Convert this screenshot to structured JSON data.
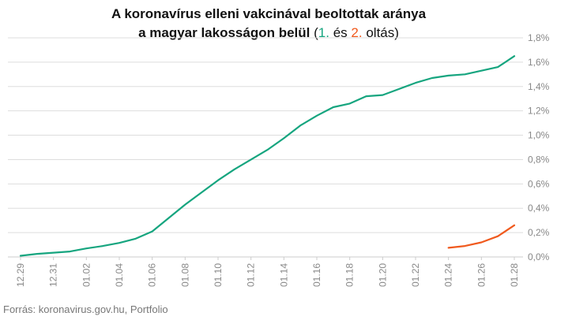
{
  "title": {
    "line1": "A koronavírus elleni vakcinával beoltottak aránya",
    "line2": "a magyar lakosságon belül",
    "paren_open": "(",
    "series1": "1.",
    "and": "és",
    "series2": "2.",
    "suffix": "oltás)"
  },
  "source": "Forrás: koronavirus.gov.hu, Portfolio",
  "colors": {
    "series1": "#16a57f",
    "series2": "#f05a1e",
    "grid": "#dddddd",
    "axis": "#cccccc"
  },
  "chart_data": {
    "type": "line",
    "x": [
      "12.29",
      "12.30",
      "12.31",
      "01.01",
      "01.02",
      "01.03",
      "01.04",
      "01.05",
      "01.06",
      "01.07",
      "01.08",
      "01.09",
      "01.10",
      "01.11",
      "01.12",
      "01.13",
      "01.14",
      "01.15",
      "01.16",
      "01.17",
      "01.18",
      "01.19",
      "01.20",
      "01.21",
      "01.22",
      "01.23",
      "01.24",
      "01.25",
      "01.26",
      "01.27",
      "01.28"
    ],
    "x_tick_labels": [
      "12.29",
      "12.31",
      "01.02",
      "01.04",
      "01.06",
      "01.08",
      "01.10",
      "01.12",
      "01.14",
      "01.16",
      "01.18",
      "01.20",
      "01.22",
      "01.24",
      "01.26",
      "01.28"
    ],
    "y_ticks": [
      "0,0%",
      "0,2%",
      "0,4%",
      "0,6%",
      "0,8%",
      "1,0%",
      "1,2%",
      "1,4%",
      "1,6%",
      "1,8%"
    ],
    "ylim": [
      0,
      1.8
    ],
    "y_axis_side": "right",
    "grid": true,
    "series": [
      {
        "name": "1.",
        "values": [
          0.01,
          0.025,
          0.035,
          0.045,
          0.07,
          0.09,
          0.115,
          0.15,
          0.21,
          0.32,
          0.43,
          0.53,
          0.63,
          0.72,
          0.8,
          0.88,
          0.975,
          1.08,
          1.16,
          1.23,
          1.26,
          1.32,
          1.33,
          1.38,
          1.43,
          1.47,
          1.49,
          1.5,
          1.53,
          1.56,
          1.65
        ]
      },
      {
        "name": "2.",
        "values": [
          null,
          null,
          null,
          null,
          null,
          null,
          null,
          null,
          null,
          null,
          null,
          null,
          null,
          null,
          null,
          null,
          null,
          null,
          null,
          null,
          null,
          null,
          null,
          null,
          null,
          null,
          0.075,
          0.09,
          0.12,
          0.17,
          0.26
        ]
      }
    ],
    "title": "A koronavírus elleni vakcinával beoltottak aránya a magyar lakosságon belül (1. és 2. oltás)"
  }
}
